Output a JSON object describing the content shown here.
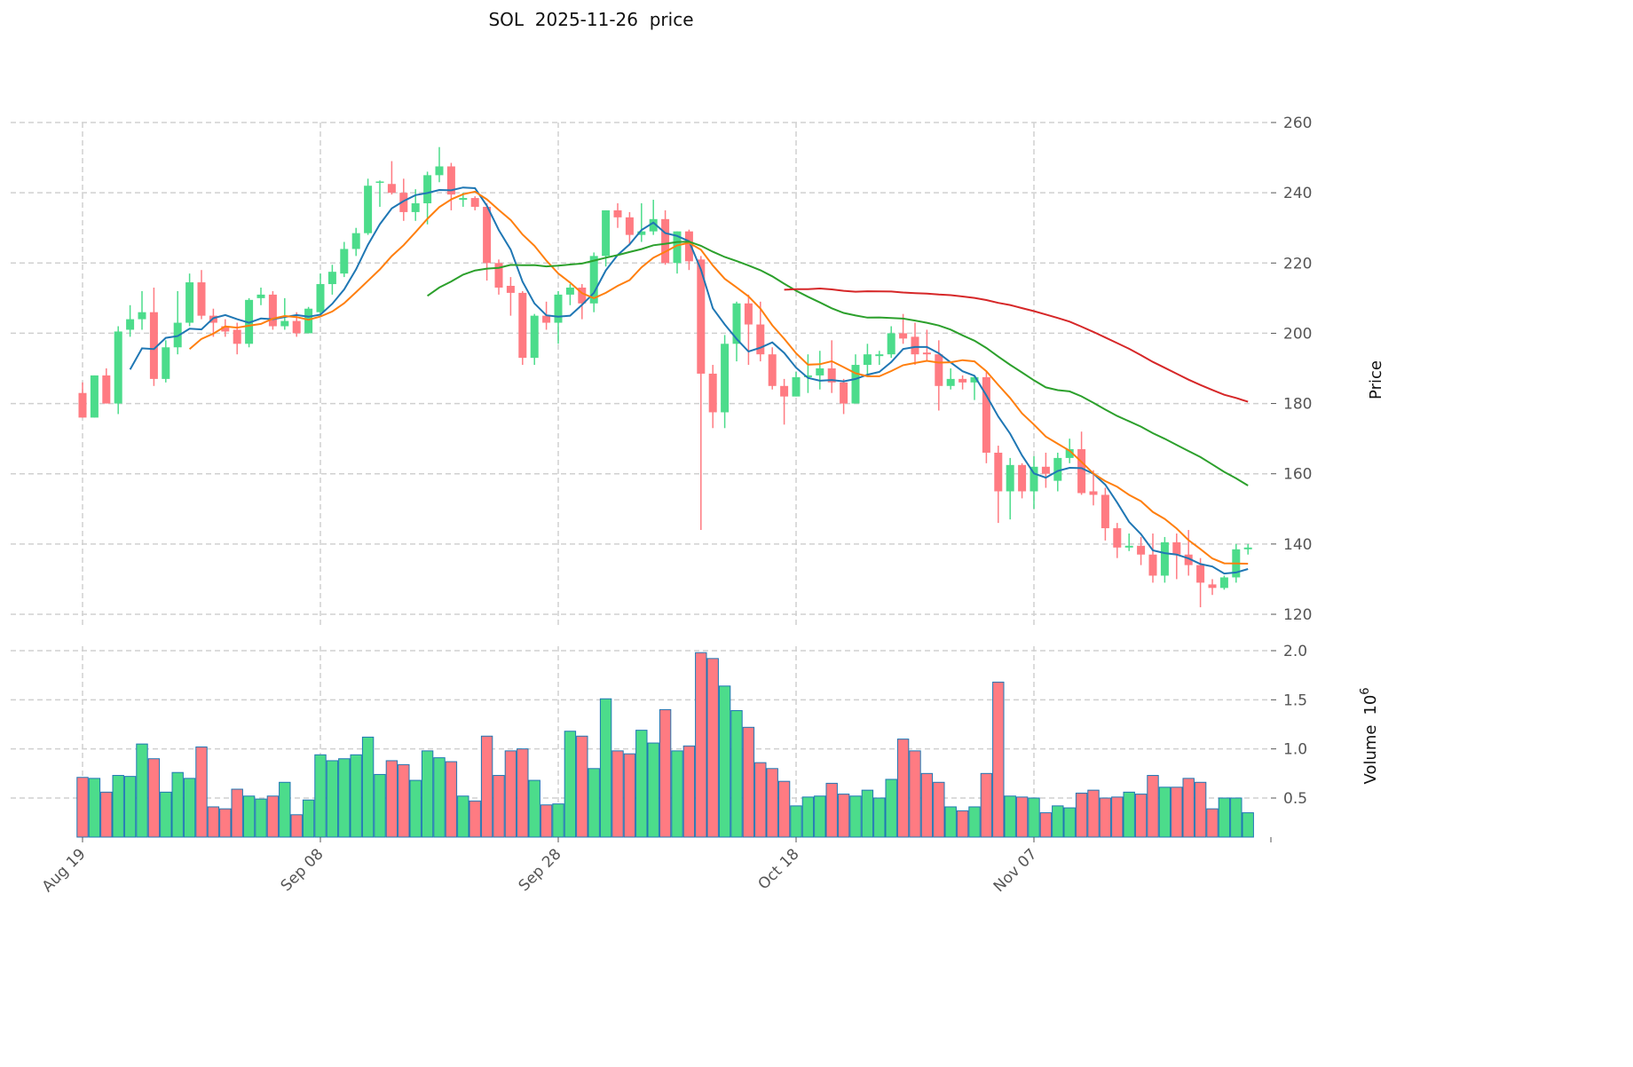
{
  "chart_data": {
    "type": "candlestick",
    "title": "SOL  2025-11-26  price",
    "start_date": "2025-08-19",
    "interval": "1D",
    "price_axis": {
      "label": "Price",
      "ylim": [
        117,
        260
      ],
      "ticks": [
        120,
        140,
        160,
        180,
        200,
        220,
        240,
        260
      ]
    },
    "volume_axis": {
      "label": "Volume",
      "multiplier_label": "10",
      "multiplier_exp": "6",
      "ylim": [
        0.1,
        2.0
      ],
      "ticks": [
        "0.5",
        "1.0",
        "1.5",
        "2.0"
      ]
    },
    "x_ticks": [
      {
        "index": 0,
        "label": "Aug 19"
      },
      {
        "index": 20,
        "label": "Sep 08"
      },
      {
        "index": 40,
        "label": "Sep 28"
      },
      {
        "index": 60,
        "label": "Oct 18"
      },
      {
        "index": 80,
        "label": "Nov 07"
      }
    ],
    "colors": {
      "up": "#4cdc8b",
      "down": "#ff7b82",
      "volume_edge": "#1f77b4"
    },
    "moving_averages": [
      {
        "window": 5,
        "color": "#1f77b4"
      },
      {
        "window": 10,
        "color": "#ff7f0e"
      },
      {
        "window": 30,
        "color": "#2ca02c"
      },
      {
        "window": 60,
        "color": "#d62728"
      }
    ],
    "ohlc": [
      [
        183,
        186,
        176,
        176
      ],
      [
        176,
        188,
        176,
        188
      ],
      [
        188,
        190,
        180,
        180
      ],
      [
        180,
        202,
        177,
        200.5
      ],
      [
        201,
        208,
        199,
        204
      ],
      [
        204,
        212,
        201,
        206
      ],
      [
        206,
        213,
        185,
        187
      ],
      [
        187,
        198,
        186,
        196
      ],
      [
        196,
        212,
        194,
        203
      ],
      [
        203,
        217,
        202,
        214.5
      ],
      [
        214.5,
        218,
        204,
        205
      ],
      [
        205,
        207,
        199,
        203
      ],
      [
        202,
        204,
        199,
        200.5
      ],
      [
        201,
        203,
        194,
        197
      ],
      [
        197,
        210,
        196,
        209.5
      ],
      [
        210,
        213,
        208,
        211
      ],
      [
        211,
        212,
        201,
        202
      ],
      [
        202,
        210,
        201,
        203.5
      ],
      [
        203.5,
        206,
        199,
        200
      ],
      [
        200,
        207.5,
        200,
        207
      ],
      [
        206,
        217,
        205,
        214
      ],
      [
        214,
        219.5,
        211,
        217.5
      ],
      [
        217,
        226,
        216,
        224
      ],
      [
        224,
        230,
        222,
        228.5
      ],
      [
        228.5,
        244,
        228,
        242
      ],
      [
        243,
        243.5,
        236,
        243.2
      ],
      [
        242.5,
        249,
        239.5,
        240
      ],
      [
        240,
        244,
        232,
        234.5
      ],
      [
        234.5,
        241,
        232,
        237
      ],
      [
        237,
        246,
        231,
        245
      ],
      [
        245,
        253,
        243,
        247.5
      ],
      [
        247.5,
        248.5,
        235,
        239.5
      ],
      [
        238,
        240,
        236,
        238.5
      ],
      [
        238.5,
        239,
        235,
        236
      ],
      [
        236,
        237,
        215,
        220
      ],
      [
        220,
        221,
        211,
        213
      ],
      [
        213.5,
        216,
        205,
        211.5
      ],
      [
        211.5,
        212,
        191,
        193
      ],
      [
        193,
        205.5,
        191,
        205
      ],
      [
        205,
        209,
        201,
        203
      ],
      [
        203,
        212,
        197,
        211
      ],
      [
        211,
        214,
        208,
        213
      ],
      [
        213,
        214,
        204,
        208.5
      ],
      [
        208.5,
        223,
        206,
        222
      ],
      [
        222,
        235,
        219,
        235
      ],
      [
        235,
        237,
        230,
        233
      ],
      [
        233,
        234.5,
        225,
        228
      ],
      [
        228,
        237,
        226,
        229
      ],
      [
        229,
        238,
        228,
        232.5
      ],
      [
        232.5,
        235,
        219.5,
        220
      ],
      [
        220,
        229,
        217,
        229
      ],
      [
        229,
        229.5,
        218,
        220.5
      ],
      [
        221,
        222,
        144,
        188.5
      ],
      [
        188.5,
        191,
        173,
        177.5
      ],
      [
        177.5,
        199.5,
        173,
        197
      ],
      [
        197,
        209,
        192,
        208.5
      ],
      [
        208.5,
        211,
        191,
        202.5
      ],
      [
        202.5,
        209,
        192,
        194
      ],
      [
        194,
        196,
        184,
        185
      ],
      [
        185,
        187,
        174,
        182
      ],
      [
        182,
        189,
        182,
        187.5
      ],
      [
        187.5,
        194,
        183,
        188
      ],
      [
        188,
        195,
        184,
        190
      ],
      [
        190,
        198,
        183,
        186
      ],
      [
        186,
        187,
        177,
        180
      ],
      [
        180,
        194,
        180,
        191
      ],
      [
        191,
        197,
        188,
        194
      ],
      [
        193.5,
        195,
        191,
        194
      ],
      [
        194,
        202,
        193,
        200
      ],
      [
        200,
        205.5,
        197,
        198.5
      ],
      [
        199,
        203,
        191,
        194
      ],
      [
        194.5,
        201,
        192,
        194
      ],
      [
        194,
        198,
        178,
        185
      ],
      [
        185,
        190,
        184,
        187
      ],
      [
        187,
        188,
        184,
        186
      ],
      [
        186,
        188,
        181,
        187.5
      ],
      [
        187.5,
        189,
        163,
        166
      ],
      [
        166,
        168,
        146,
        155
      ],
      [
        155,
        164.5,
        147,
        162.5
      ],
      [
        162.5,
        163,
        153,
        155
      ],
      [
        155,
        165,
        150,
        162
      ],
      [
        162,
        166,
        156,
        160
      ],
      [
        158,
        166,
        155,
        164.5
      ],
      [
        164.5,
        170,
        163,
        167
      ],
      [
        167,
        172,
        154,
        154.5
      ],
      [
        155,
        161,
        151,
        154
      ],
      [
        154,
        156,
        141,
        144.5
      ],
      [
        144.5,
        146,
        136,
        139
      ],
      [
        139,
        143,
        138,
        139.5
      ],
      [
        139.5,
        142,
        134,
        137
      ],
      [
        137,
        143,
        129,
        131
      ],
      [
        131,
        142,
        129,
        140.5
      ],
      [
        140.5,
        143,
        130,
        137
      ],
      [
        137,
        144,
        131,
        134
      ],
      [
        134,
        136,
        122,
        129
      ],
      [
        128.5,
        130,
        125.5,
        127.5
      ],
      [
        127.5,
        131,
        127,
        130.5
      ],
      [
        130.5,
        140,
        129,
        138.5
      ],
      [
        138.5,
        140,
        137,
        139
      ]
    ],
    "volume": [
      0.71,
      0.7,
      0.56,
      0.73,
      0.72,
      1.05,
      0.9,
      0.56,
      0.76,
      0.7,
      1.02,
      0.41,
      0.39,
      0.59,
      0.52,
      0.49,
      0.52,
      0.66,
      0.33,
      0.48,
      0.94,
      0.88,
      0.9,
      0.94,
      1.12,
      0.74,
      0.88,
      0.84,
      0.68,
      0.98,
      0.91,
      0.87,
      0.52,
      0.47,
      1.13,
      0.73,
      0.98,
      1.0,
      0.68,
      0.43,
      0.44,
      1.18,
      1.13,
      0.8,
      1.51,
      0.98,
      0.95,
      1.19,
      1.06,
      1.4,
      0.98,
      1.03,
      1.98,
      1.92,
      1.64,
      1.39,
      1.22,
      0.86,
      0.8,
      0.67,
      0.42,
      0.51,
      0.52,
      0.65,
      0.54,
      0.52,
      0.58,
      0.5,
      0.69,
      1.1,
      0.98,
      0.75,
      0.66,
      0.41,
      0.37,
      0.41,
      0.75,
      1.68,
      0.52,
      0.51,
      0.5,
      0.35,
      0.42,
      0.4,
      0.55,
      0.58,
      0.5,
      0.51,
      0.56,
      0.54,
      0.73,
      0.61,
      0.61,
      0.7,
      0.66,
      0.39,
      0.5,
      0.5,
      0.35
    ]
  }
}
